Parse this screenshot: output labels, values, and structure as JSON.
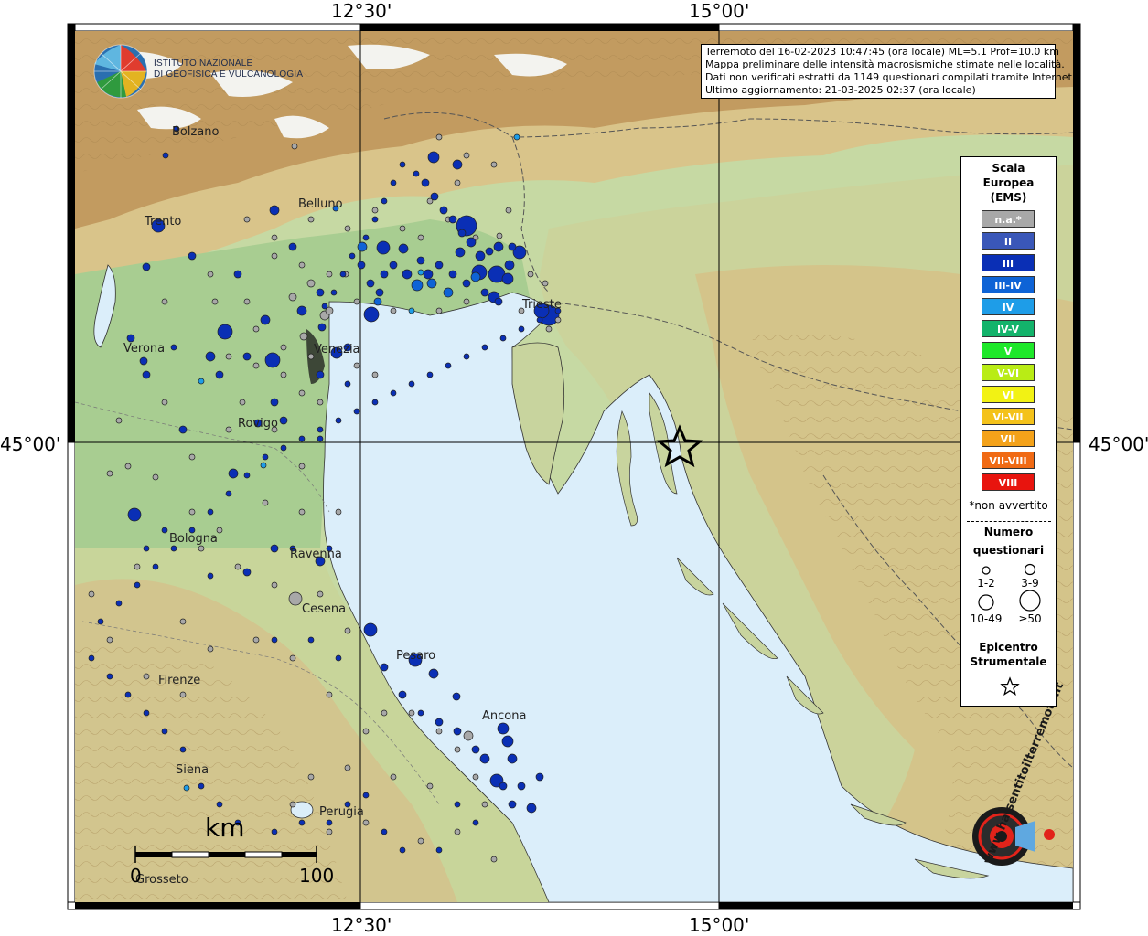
{
  "axes": {
    "top_left_label": "12°30'",
    "top_right_label": "15°00'",
    "bottom_left_label": "12°30'",
    "bottom_right_label": "15°00'",
    "left_label": "45°00'",
    "right_label": "45°00'"
  },
  "logo": {
    "line1": "ISTITUTO NAZIONALE",
    "line2": "DI GEOFISICA E VULCANOLOGIA"
  },
  "info": {
    "line1": "Terremoto del 16-02-2023 10:47:45 (ora locale) ML=5.1 Prof=10.0 km",
    "line2": "Mappa preliminare delle intensità macrosismiche stimate nelle località.",
    "line3": "Dati non verificati estratti da 1149 questionari compilati tramite Internet.",
    "line4": "Ultimo aggiornamento: 21-03-2025 02:37 (ora locale)"
  },
  "legend": {
    "title1": "Scala",
    "title2": "Europea",
    "title3": "(EMS)",
    "ems": [
      {
        "label": "n.a.*",
        "color": "#a8a8a8"
      },
      {
        "label": "II",
        "color": "#3a57b8"
      },
      {
        "label": "III",
        "color": "#0a2fb5"
      },
      {
        "label": "III-IV",
        "color": "#0e63d6"
      },
      {
        "label": "IV",
        "color": "#1e9de8"
      },
      {
        "label": "IV-V",
        "color": "#13b36b"
      },
      {
        "label": "V",
        "color": "#1ee82a"
      },
      {
        "label": "V-VI",
        "color": "#b9ec15"
      },
      {
        "label": "VI",
        "color": "#f2f214"
      },
      {
        "label": "VI-VII",
        "color": "#f4c21a"
      },
      {
        "label": "VII",
        "color": "#f4a21a"
      },
      {
        "label": "VII-VIII",
        "color": "#f06a14"
      },
      {
        "label": "VIII",
        "color": "#e8140e"
      }
    ],
    "note": "*non avvertito",
    "count_title1": "Numero",
    "count_title2": "questionari",
    "counts": [
      "1-2",
      "3-9",
      "10-49",
      "≥50"
    ],
    "epi_title1": "Epicentro",
    "epi_title2": "Strumentale"
  },
  "scale": {
    "unit": "km",
    "start": "0",
    "end": "100"
  },
  "cities": [
    "Bolzano",
    "Belluno",
    "Trento",
    "Trieste",
    "Verona",
    "Venezia",
    "Rovigo",
    "Bologna",
    "Ravenna",
    "Cesena",
    "Pesaro",
    "Firenze",
    "Ancona",
    "Siena",
    "Perugia",
    "Grosseto"
  ],
  "brand": {
    "text": "www.haisentitoilterremoto.it"
  },
  "colors": {
    "sea": "#dbeefa",
    "lowland": "#a9cf94",
    "hills": "#d8c98e",
    "mountains": "#b9905a",
    "snow": "#f4f4f4"
  }
}
